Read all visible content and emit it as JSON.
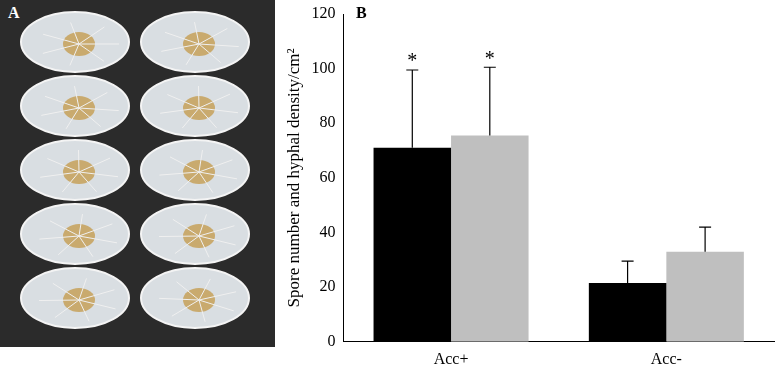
{
  "panel_labels": [
    "A",
    "B"
  ],
  "chart_data": {
    "type": "bar",
    "y_label": "Spore number and hyphal density/cm²",
    "categories": [
      "Acc+",
      "Acc-"
    ],
    "series": [
      {
        "color": "#000000",
        "values": [
          71,
          21.5
        ],
        "errors": [
          28.5,
          8
        ]
      },
      {
        "color": "#bfbfbf",
        "values": [
          75.5,
          33
        ],
        "errors": [
          25,
          9
        ]
      }
    ],
    "annotations": [
      {
        "text": "*",
        "category": "Acc+",
        "series": 0
      },
      {
        "text": "*",
        "category": "Acc+",
        "series": 1
      }
    ],
    "ylim": [
      0,
      120
    ],
    "yticks": [
      0,
      20,
      40,
      60,
      80,
      100,
      120
    ],
    "grid": false,
    "legend": null
  }
}
